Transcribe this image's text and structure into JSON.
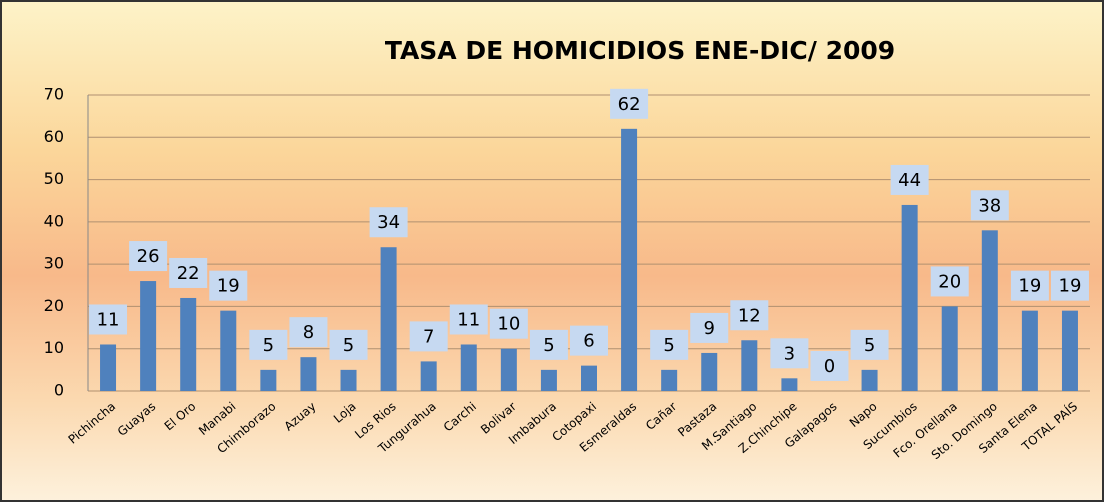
{
  "chart_data": {
    "type": "bar",
    "title": "TASA DE HOMICIDIOS ENE-DIC/ 2009",
    "categories": [
      "Pichincha",
      "Guayas",
      "El Oro",
      "Manabi",
      "Chimborazo",
      "Azuay",
      "Loja",
      "Los Rios",
      "Tungurahua",
      "Carchi",
      "Bolivar",
      "Imbabura",
      "Cotopaxi",
      "Esmeraldas",
      "Cañar",
      "Pastaza",
      "M.Santiago",
      "Z.Chinchipe",
      "Galapagos",
      "Napo",
      "Sucumbios",
      "Fco. Orellana",
      "Sto. Domingo",
      "Santa Elena",
      "TOTAL PAÍS"
    ],
    "values": [
      11,
      26,
      22,
      19,
      5,
      8,
      5,
      34,
      7,
      11,
      10,
      5,
      6,
      62,
      5,
      9,
      12,
      3,
      0,
      5,
      44,
      20,
      38,
      19,
      19
    ],
    "color": "#4f81bd",
    "ylim": [
      0,
      70
    ],
    "yticks": [
      0,
      10,
      20,
      30,
      40,
      50,
      60,
      70
    ],
    "grid": true
  }
}
